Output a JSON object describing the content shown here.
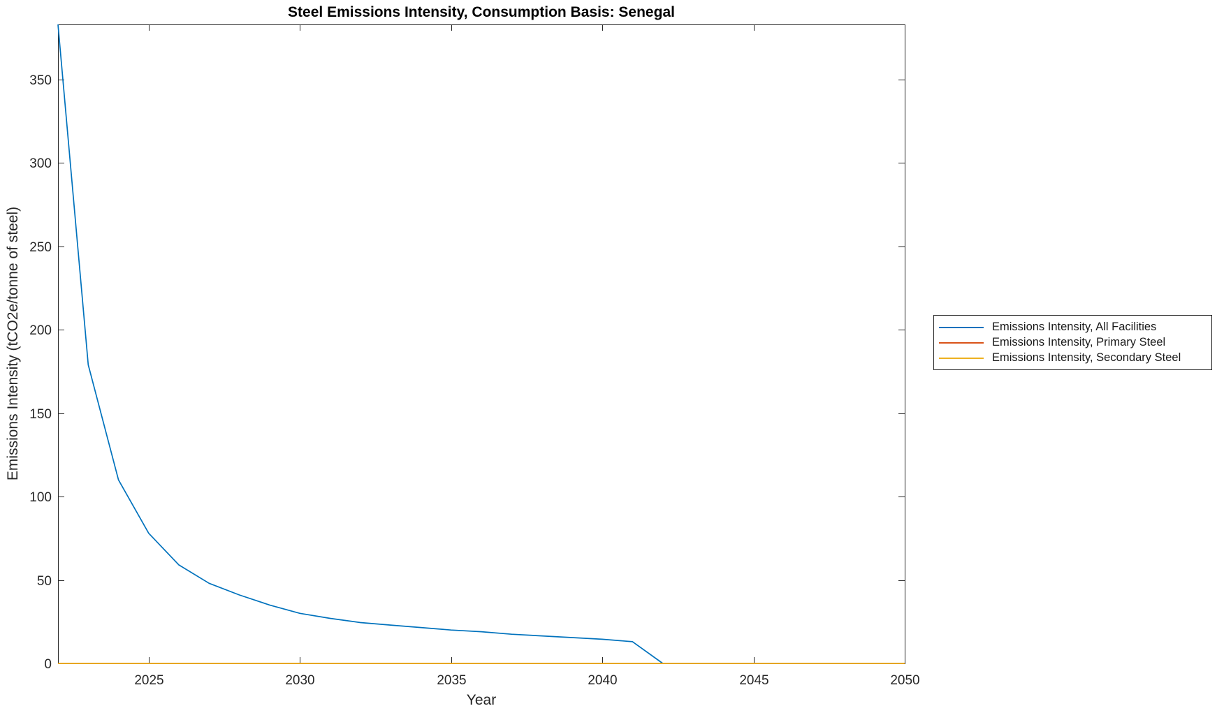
{
  "chart_data": {
    "type": "line",
    "title": "Steel Emissions Intensity, Consumption Basis: Senegal",
    "xlabel": "Year",
    "ylabel": "Emissions Intensity (tCO2e/tonne of steel)",
    "xlim": [
      2022,
      2050
    ],
    "ylim": [
      0,
      383
    ],
    "x_ticks": [
      2025,
      2030,
      2035,
      2040,
      2045,
      2050
    ],
    "y_ticks": [
      0,
      50,
      100,
      150,
      200,
      250,
      300,
      350
    ],
    "grid": false,
    "box": true,
    "legend_position": "outside-right",
    "axis_color": "#262626",
    "x": [
      2022,
      2023,
      2024,
      2025,
      2026,
      2027,
      2028,
      2029,
      2030,
      2031,
      2032,
      2033,
      2034,
      2035,
      2036,
      2037,
      2038,
      2039,
      2040,
      2041,
      2042,
      2043,
      2044,
      2045,
      2046,
      2047,
      2048,
      2049,
      2050
    ],
    "series": [
      {
        "name": "Emissions Intensity, All Facilities",
        "color": "#0072BD",
        "values": [
          383,
          179,
          110,
          78,
          59,
          48,
          41,
          35,
          30,
          27,
          24.5,
          23,
          21.5,
          20,
          19,
          17.5,
          16.5,
          15.5,
          14.5,
          13,
          0,
          0,
          0,
          0,
          0,
          0,
          0,
          0,
          0
        ]
      },
      {
        "name": "Emissions Intensity, Primary Steel",
        "color": "#D95319",
        "values": [
          0,
          0,
          0,
          0,
          0,
          0,
          0,
          0,
          0,
          0,
          0,
          0,
          0,
          0,
          0,
          0,
          0,
          0,
          0,
          0,
          0,
          0,
          0,
          0,
          0,
          0,
          0,
          0,
          0
        ]
      },
      {
        "name": "Emissions Intensity, Secondary Steel",
        "color": "#EDB120",
        "values": [
          0,
          0,
          0,
          0,
          0,
          0,
          0,
          0,
          0,
          0,
          0,
          0,
          0,
          0,
          0,
          0,
          0,
          0,
          0,
          0,
          0,
          0,
          0,
          0,
          0,
          0,
          0,
          0,
          0
        ]
      }
    ]
  }
}
